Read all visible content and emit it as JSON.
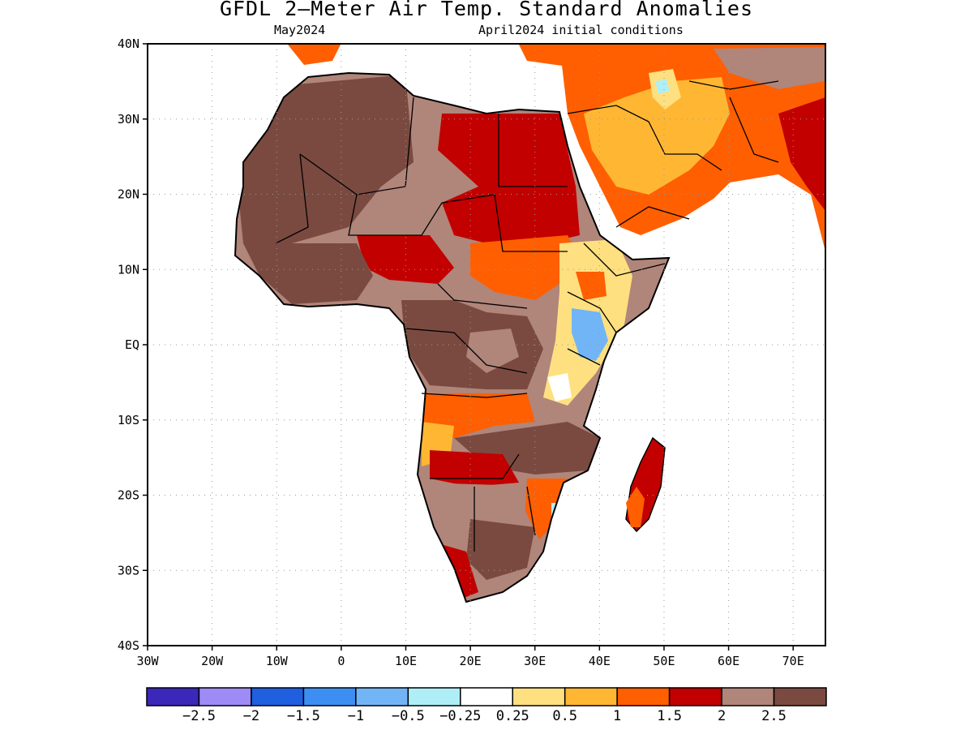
{
  "title": "GFDL 2—Meter Air Temp. Standard Anomalies",
  "subtitle_left": "May2024",
  "subtitle_right": "April2024 initial conditions",
  "map": {
    "lat_range": [
      -40,
      40
    ],
    "lon_range": [
      -30,
      75
    ],
    "grid": true,
    "lat_labels": [
      "40N",
      "30N",
      "20N",
      "10N",
      "EQ",
      "10S",
      "20S",
      "30S",
      "40S"
    ],
    "lon_labels": [
      "30W",
      "20W",
      "10W",
      "0",
      "10E",
      "20E",
      "30E",
      "40E",
      "50E",
      "60E",
      "70E"
    ]
  },
  "colorbar": {
    "colors": [
      "#3b27b8",
      "#9e8bf5",
      "#1f5fe0",
      "#3d8ef2",
      "#72b5f7",
      "#aeeff7",
      "#ffffff",
      "#ffe080",
      "#ffb733",
      "#ff5f00",
      "#c20000",
      "#b0857a",
      "#7a4a40"
    ],
    "labels": [
      "−2.5",
      "−2",
      "−1.5",
      "−1",
      "−0.5",
      "−0.25",
      "0.25",
      "0.5",
      "1",
      "1.5",
      "2",
      "2.5"
    ]
  }
}
